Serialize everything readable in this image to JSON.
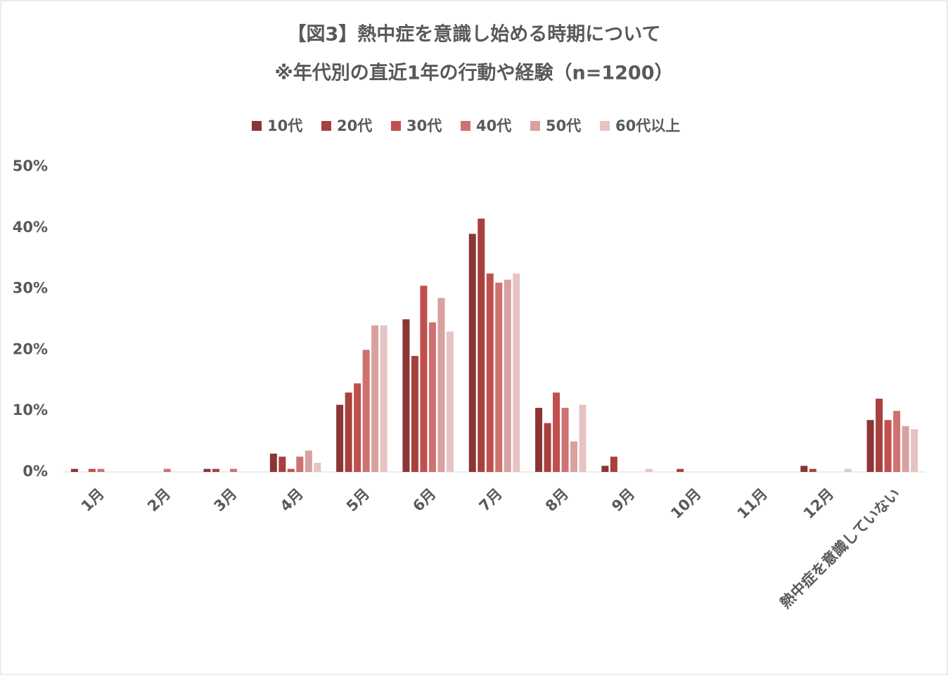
{
  "chart_data": {
    "type": "bar",
    "title": "【図3】熱中症を意識し始める時期について",
    "subtitle": "※年代別の直近1年の行動や経験（n=1200）",
    "categories": [
      "1月",
      "2月",
      "3月",
      "4月",
      "5月",
      "6月",
      "7月",
      "8月",
      "9月",
      "10月",
      "11月",
      "12月",
      "熱中症を意識していない"
    ],
    "series": [
      {
        "name": "10代",
        "color": "#8b3535",
        "values": [
          0.5,
          0,
          0.5,
          3,
          11,
          25,
          39,
          10.5,
          1,
          0,
          0,
          1,
          8.5
        ]
      },
      {
        "name": "20代",
        "color": "#a8403e",
        "values": [
          0,
          0,
          0.5,
          2.5,
          13,
          19,
          41.5,
          8,
          2.5,
          0.5,
          0,
          0.5,
          12
        ]
      },
      {
        "name": "30代",
        "color": "#c0504d",
        "values": [
          0.5,
          0,
          0,
          0.5,
          14.5,
          30.5,
          32.5,
          13,
          0,
          0,
          0,
          0,
          8.5
        ]
      },
      {
        "name": "40代",
        "color": "#cd7270",
        "values": [
          0.5,
          0.5,
          0.5,
          2.5,
          20,
          24.5,
          31,
          10.5,
          0,
          0,
          0,
          0,
          10
        ]
      },
      {
        "name": "50代",
        "color": "#d9a0a0",
        "values": [
          0,
          0,
          0,
          3.5,
          24,
          28.5,
          31.5,
          5,
          0,
          0,
          0,
          0,
          7.5
        ]
      },
      {
        "name": "60代以上",
        "color": "#e6c3c3",
        "values": [
          0,
          0,
          0,
          1.5,
          24,
          23,
          32.5,
          11,
          0.5,
          0,
          0,
          0.5,
          7
        ]
      }
    ],
    "ylim": [
      0,
      50
    ],
    "yticks": [
      {
        "value": 0,
        "label": "0%"
      },
      {
        "value": 10,
        "label": "10%"
      },
      {
        "value": 20,
        "label": "20%"
      },
      {
        "value": 30,
        "label": "30%"
      },
      {
        "value": 40,
        "label": "40%"
      },
      {
        "value": 50,
        "label": "50%"
      }
    ],
    "grid": false,
    "legend": "top"
  }
}
